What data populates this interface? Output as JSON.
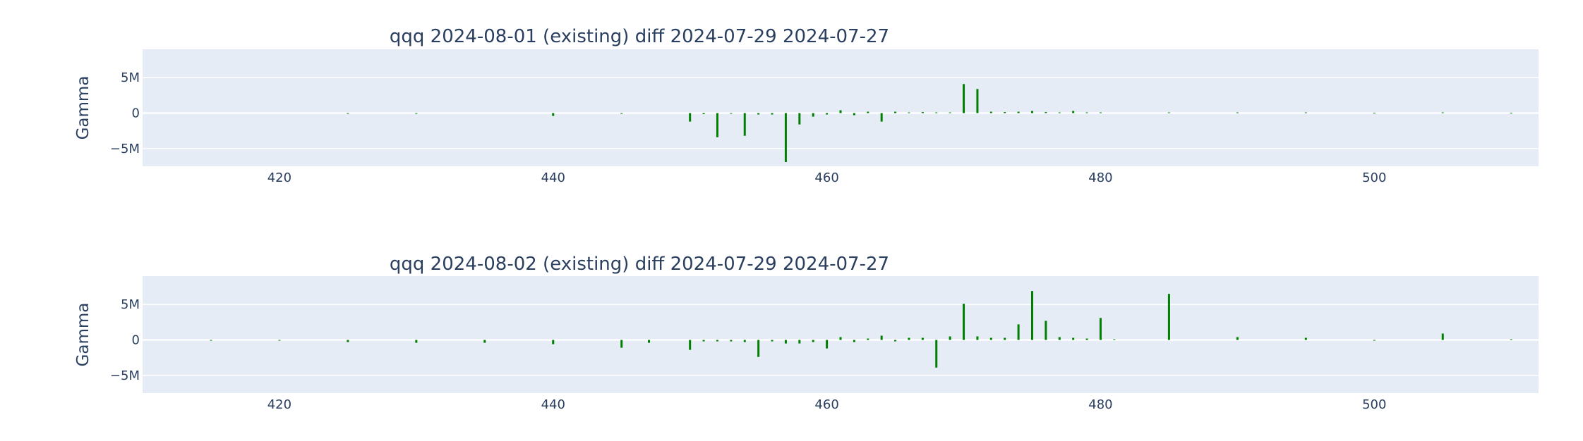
{
  "chart_data": [
    {
      "type": "bar",
      "title": "qqq 2024-08-01 (existing) diff 2024-07-29 2024-07-27",
      "xlabel": "",
      "ylabel": "Gamma",
      "xlim": [
        410,
        512
      ],
      "ylim": [
        -7.5,
        9.0
      ],
      "xticks": [
        {
          "v": 420,
          "label": "420"
        },
        {
          "v": 440,
          "label": "440"
        },
        {
          "v": 460,
          "label": "460"
        },
        {
          "v": 480,
          "label": "480"
        },
        {
          "v": 500,
          "label": "500"
        }
      ],
      "yticks": [
        {
          "v": 5,
          "label": "5M"
        },
        {
          "v": 0,
          "label": "0"
        },
        {
          "v": -5,
          "label": "−5M"
        }
      ],
      "units": "M",
      "grid": true,
      "bar_color": "#008000",
      "series": [
        {
          "x": [
            425,
            430,
            440,
            445,
            450,
            451,
            452,
            453,
            454,
            455,
            456,
            457,
            458,
            459,
            460,
            461,
            462,
            463,
            464,
            465,
            466,
            467,
            468,
            469,
            470,
            471,
            472,
            473,
            474,
            475,
            476,
            477,
            478,
            479,
            480,
            485,
            490,
            495,
            500,
            505,
            510
          ],
          "values": [
            -0.05,
            -0.1,
            -0.4,
            -0.1,
            -1.2,
            -0.15,
            -3.4,
            -0.1,
            -3.2,
            -0.2,
            -0.2,
            -6.9,
            -1.6,
            -0.5,
            -0.2,
            0.4,
            -0.3,
            0.2,
            -1.2,
            0.2,
            0.1,
            0.15,
            0.1,
            0.1,
            4.1,
            3.4,
            0.2,
            0.15,
            0.2,
            0.3,
            0.15,
            0.1,
            0.3,
            0.1,
            0.1,
            0.1,
            0.1,
            0.1,
            0.05,
            0.1,
            0.05
          ]
        }
      ]
    },
    {
      "type": "bar",
      "title": "qqq 2024-08-02 (existing) diff 2024-07-29 2024-07-27",
      "xlabel": "",
      "ylabel": "Gamma",
      "xlim": [
        410,
        512
      ],
      "ylim": [
        -7.5,
        9.0
      ],
      "xticks": [
        {
          "v": 420,
          "label": "420"
        },
        {
          "v": 440,
          "label": "440"
        },
        {
          "v": 460,
          "label": "460"
        },
        {
          "v": 480,
          "label": "480"
        },
        {
          "v": 500,
          "label": "500"
        }
      ],
      "yticks": [
        {
          "v": 5,
          "label": "5M"
        },
        {
          "v": 0,
          "label": "0"
        },
        {
          "v": -5,
          "label": "−5M"
        }
      ],
      "units": "M",
      "grid": true,
      "bar_color": "#008000",
      "series": [
        {
          "x": [
            415,
            420,
            425,
            430,
            435,
            440,
            445,
            447,
            450,
            451,
            452,
            453,
            454,
            455,
            456,
            457,
            458,
            459,
            460,
            461,
            462,
            463,
            464,
            465,
            466,
            467,
            468,
            469,
            470,
            471,
            472,
            473,
            474,
            475,
            476,
            477,
            478,
            479,
            480,
            481,
            485,
            490,
            495,
            500,
            505,
            510
          ],
          "values": [
            -0.1,
            -0.1,
            -0.3,
            -0.4,
            -0.4,
            -0.6,
            -1.1,
            -0.4,
            -1.4,
            -0.2,
            -0.2,
            -0.2,
            -0.3,
            -2.4,
            -0.2,
            -0.5,
            -0.5,
            -0.3,
            -1.2,
            0.4,
            -0.3,
            0.2,
            0.6,
            -0.2,
            0.3,
            0.3,
            -3.9,
            0.5,
            5.1,
            0.5,
            0.3,
            0.3,
            2.2,
            6.9,
            2.7,
            0.4,
            0.3,
            0.2,
            3.1,
            0.1,
            6.5,
            0.4,
            0.3,
            -0.1,
            0.9,
            0.1
          ]
        }
      ]
    }
  ]
}
